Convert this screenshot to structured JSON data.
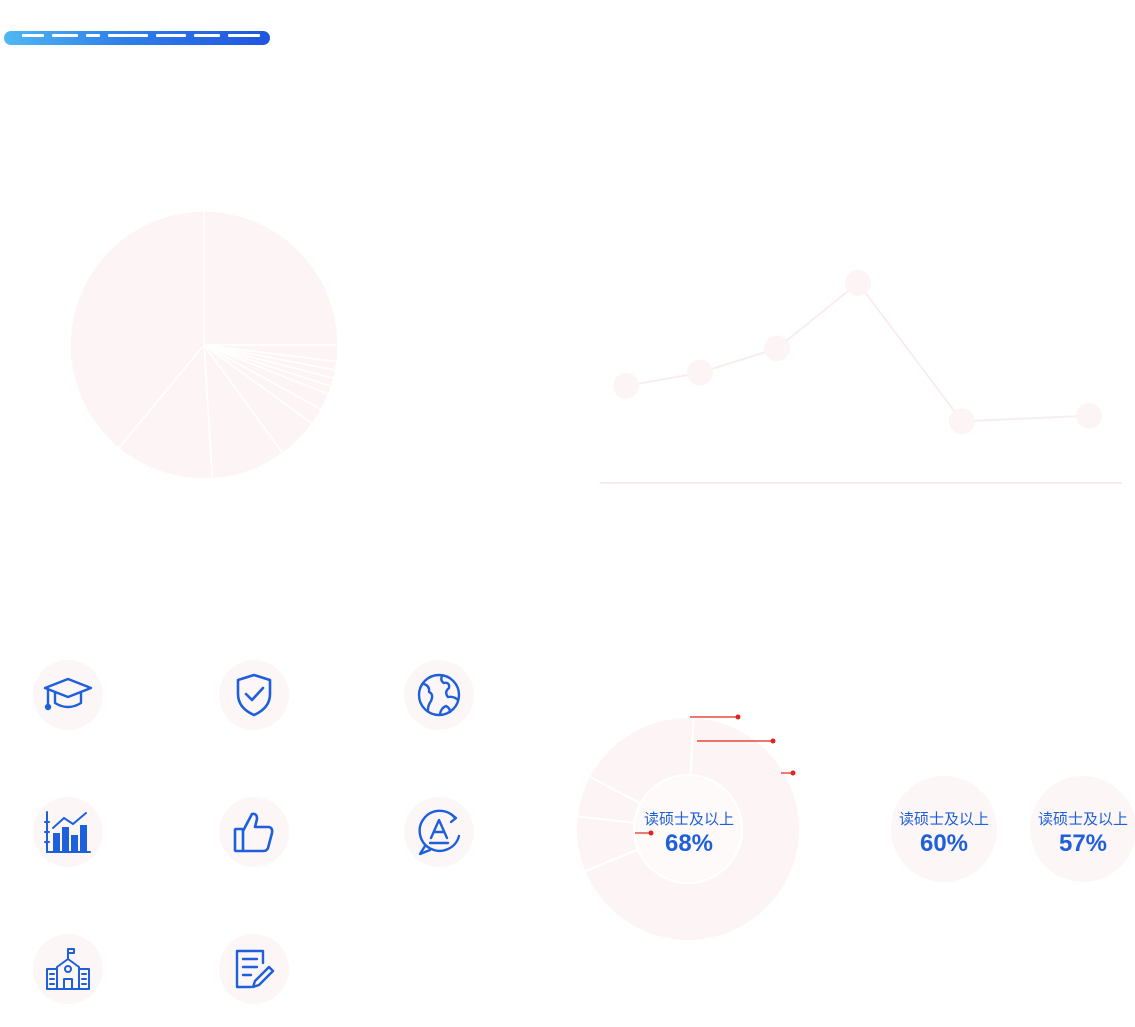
{
  "colors": {
    "accent_blue": "#1e5fdc",
    "faint_fill": "#fdf5f5",
    "leader_red": "#e0261b"
  },
  "icons": [
    {
      "name": "graduation-cap-icon"
    },
    {
      "name": "shield-check-icon"
    },
    {
      "name": "globe-icon"
    },
    {
      "name": "bar-chart-icon"
    },
    {
      "name": "thumbs-up-icon"
    },
    {
      "name": "language-a-icon"
    },
    {
      "name": "school-building-icon"
    },
    {
      "name": "document-edit-icon"
    }
  ],
  "chart_data": [
    {
      "type": "pie",
      "values": [
        25,
        2,
        1,
        1,
        1,
        1,
        2,
        2,
        5,
        9,
        12,
        39
      ]
    },
    {
      "type": "line",
      "x": [
        1,
        2,
        3,
        4,
        5,
        6
      ],
      "values": [
        22,
        29,
        42,
        77,
        3,
        6
      ],
      "ylim": [
        -30,
        100
      ]
    },
    {
      "type": "pie",
      "donut": true,
      "values": [
        68,
        8,
        6,
        18
      ],
      "center_label": "读硕士及以上",
      "center_value": "68%"
    },
    {
      "type": "pie",
      "center_label": "读硕士及以上",
      "center_value": "60%"
    },
    {
      "type": "pie",
      "center_label": "读硕士及以上",
      "center_value": "57%"
    }
  ]
}
